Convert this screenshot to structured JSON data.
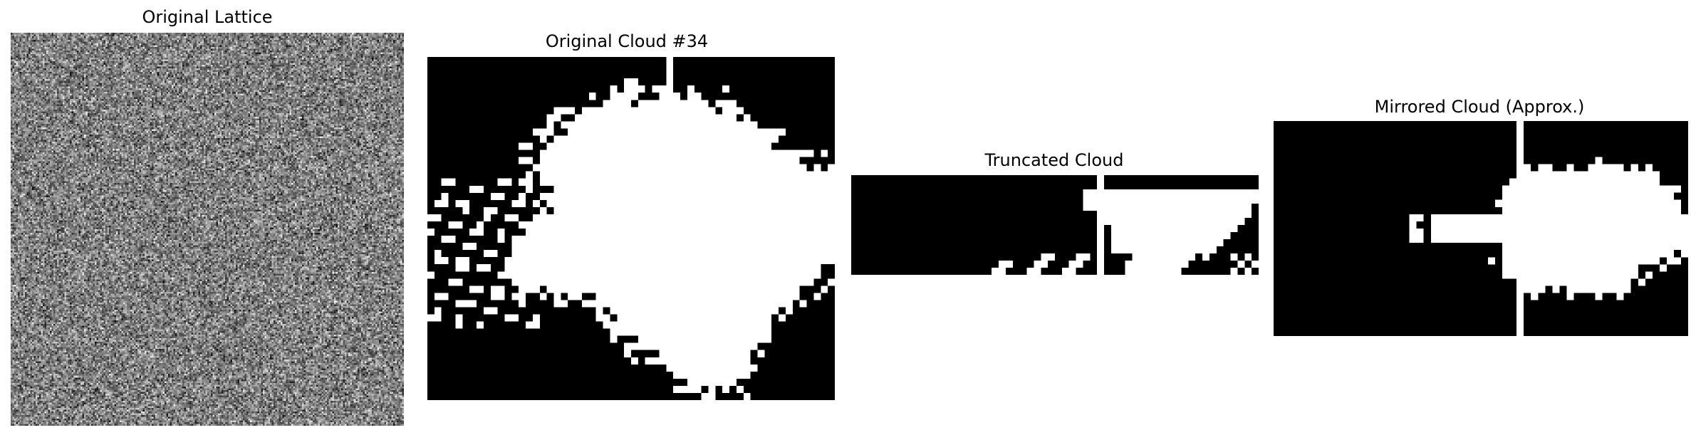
{
  "panels": [
    {
      "title": "Original Lattice",
      "kind": "noise",
      "colormap": "grayscale",
      "grid": 220
    },
    {
      "title": "Original Cloud #34",
      "kind": "cloud",
      "colormap": "binary",
      "foreground": "#ffffff",
      "background": "#000000"
    },
    {
      "title": "Truncated Cloud",
      "kind": "cloud",
      "colormap": "binary",
      "foreground": "#ffffff",
      "background": "#000000"
    },
    {
      "title": "Mirrored Cloud (Approx.)",
      "kind": "cloud",
      "colormap": "binary",
      "foreground": "#ffffff",
      "background": "#000000"
    }
  ]
}
